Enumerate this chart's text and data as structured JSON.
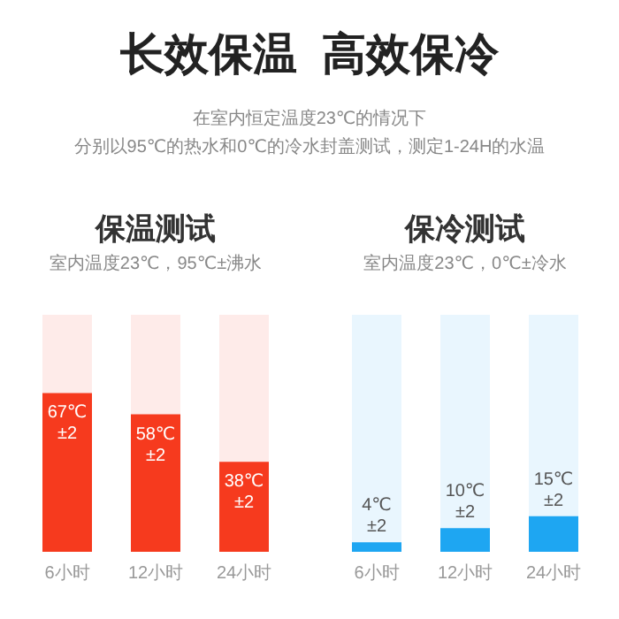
{
  "chart_data": [
    {
      "type": "bar",
      "title": "保温测试",
      "subtitle": "室内温度23℃，95℃±沸水",
      "annotations": [
        "长效保温  高效保冷",
        "在室内恒定温度23℃的情况下",
        "分别以95℃的热水和0℃的冷水封盖测试，测定1-24H的水温"
      ],
      "categories": [
        "6小时",
        "12小时",
        "24小时"
      ],
      "values": [
        67,
        58,
        38
      ],
      "color": "#f63a1e",
      "value_labels": [
        "67℃ ±2",
        "58℃ ±2",
        "38℃ ±2"
      ],
      "ylim": [
        0,
        100
      ],
      "tick_labels": "x",
      "grid": false,
      "legend": false
    },
    {
      "type": "bar",
      "title": "保冷测试",
      "subtitle": "室内温度23℃，0℃±冷水",
      "categories": [
        "6小时",
        "12小时",
        "24小时"
      ],
      "values": [
        4,
        10,
        15
      ],
      "color": "#1ea6f2",
      "value_labels": [
        "4℃ ±2",
        "10℃ ±2",
        "15℃ ±2"
      ],
      "ylim": [
        0,
        100
      ],
      "tick_labels": "x",
      "grid": false,
      "legend": false
    }
  ]
}
